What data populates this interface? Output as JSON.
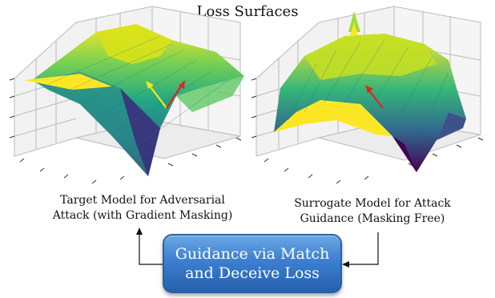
{
  "title": "Loss Surfaces",
  "left_caption": {
    "line1": "Target Model for Adversarial",
    "line2": "Attack (with Gradient Masking)"
  },
  "right_caption": {
    "line1": "Surrogate Model for Attack",
    "line2": "Guidance (Masking Free)"
  },
  "guidance_box": {
    "line1": "Guidance via Match",
    "line2": "and Deceive Loss"
  },
  "colors": {
    "box_fill": "#3c7fd0",
    "arrow_yellow": "#f4e81a",
    "arrow_red": "#e0241c",
    "connector": "#111111"
  }
}
